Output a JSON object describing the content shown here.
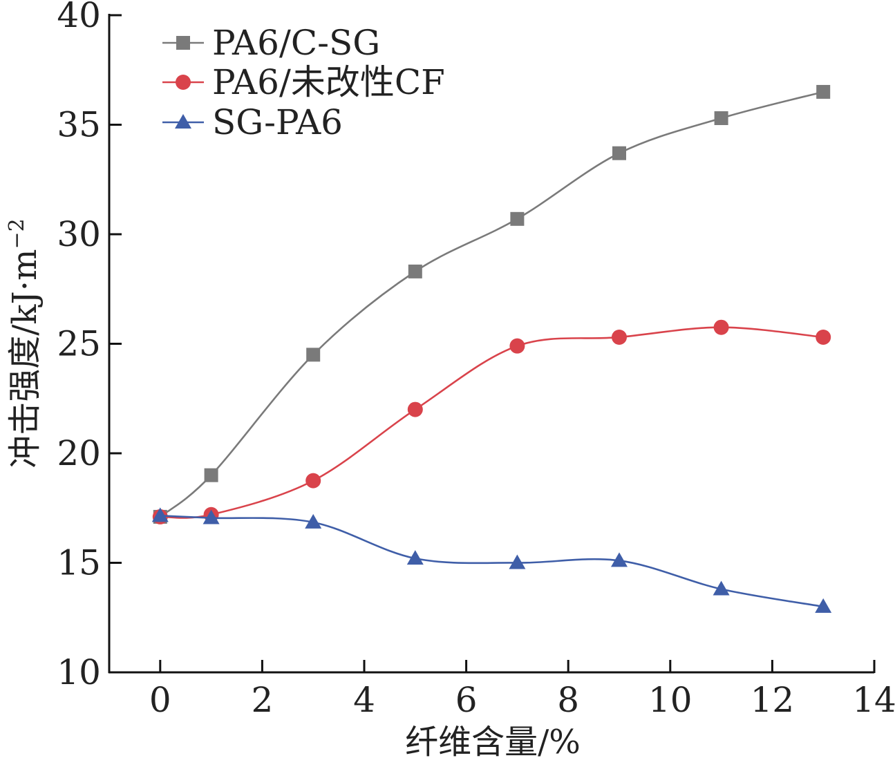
{
  "chart_data": {
    "type": "line",
    "xlabel": "纤维含量/%",
    "ylabel": "冲击强度/kJ·m",
    "ylabel_sup": "−2",
    "xlim": [
      -1,
      14
    ],
    "ylim": [
      10,
      40
    ],
    "x_ticks": [
      0,
      2,
      4,
      6,
      8,
      10,
      12,
      14
    ],
    "y_ticks": [
      10,
      15,
      20,
      25,
      30,
      35,
      40
    ],
    "legend_position": "top-left",
    "grid": false,
    "x": [
      0,
      1,
      3,
      5,
      7,
      9,
      11,
      13
    ],
    "series": [
      {
        "name": "PA6/C-SG",
        "marker": "square",
        "color": "#7a7a7a",
        "values": [
          17.1,
          19.0,
          24.5,
          28.3,
          30.7,
          33.7,
          35.3,
          36.5
        ]
      },
      {
        "name": "PA6/未改性CF",
        "marker": "circle",
        "color": "#d9434b",
        "values": [
          17.1,
          17.2,
          18.75,
          22.0,
          24.9,
          25.3,
          25.75,
          25.3
        ]
      },
      {
        "name": "SG-PA6",
        "marker": "triangle",
        "color": "#3f5ea8",
        "values": [
          17.15,
          17.05,
          16.85,
          15.2,
          15.0,
          15.1,
          13.8,
          13.0
        ]
      }
    ]
  }
}
